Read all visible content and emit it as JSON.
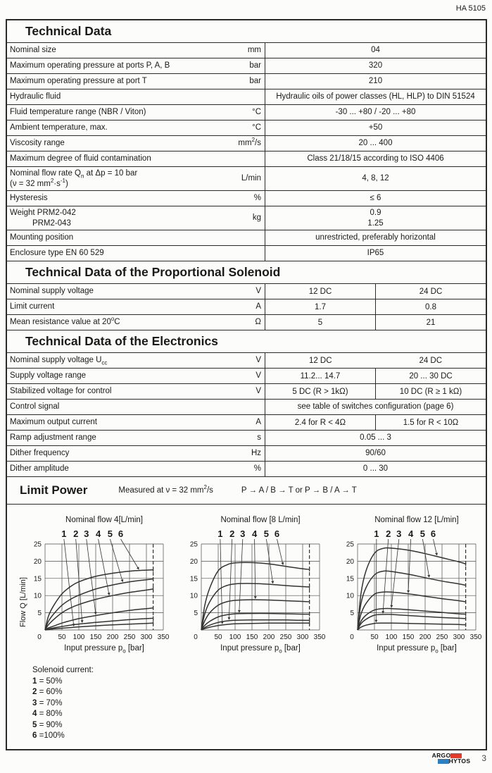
{
  "doc_ref": "HA 5105",
  "page_number": "3",
  "brand": {
    "line1": "ARGO",
    "line2": "HYTOS",
    "red": "#e6382d",
    "blue": "#2a7fc5"
  },
  "sections": {
    "technical_data": {
      "title": "Technical Data",
      "rows": [
        {
          "label": "Nominal size",
          "unit": "mm",
          "value": "04"
        },
        {
          "label": "Maximum operating pressure at ports  P, A, B",
          "unit": "bar",
          "value": "320"
        },
        {
          "label": "Maximum operating pressure at port  T",
          "unit": "bar",
          "value": "210"
        },
        {
          "label": "Hydraulic fluid",
          "unit": "",
          "value": "Hydraulic oils of power classes (HL, HLP) to DIN 51524"
        },
        {
          "label": "Fluid temperature range (NBR / Viton)",
          "unit": "°C",
          "value": "-30 ... +80 / -20 ... +80"
        },
        {
          "label": "Ambient temperature, max.",
          "unit": "°C",
          "value": "+50"
        },
        {
          "label": "Viscosity range",
          "unit": "mm<sup>2</sup>/s",
          "value": "20 ... 400"
        },
        {
          "label": "Maximum degree of fluid contamination",
          "unit": "",
          "value": "Class 21/18/15 according to ISO 4406"
        },
        {
          "label": "Nominal flow  rate Q<sub>n</sub> at Δp = 10 bar<br>(ν = 32 mm<sup>2</sup>·s<sup>-1</sup>)",
          "unit": "L/min",
          "value": "4, 8, 12"
        },
        {
          "label": "Hysteresis",
          "unit": "%",
          "value": "≤ 6"
        },
        {
          "label": "Weight  PRM2-042<br>&nbsp;&nbsp;&nbsp;&nbsp;&nbsp;&nbsp;&nbsp;&nbsp;&nbsp;&nbsp;PRM2-043",
          "unit": "kg",
          "value": "0.9<br>1.25"
        },
        {
          "label": "Mounting position",
          "unit": "",
          "value": "unrestricted, preferably horizontal"
        },
        {
          "label": "Enclosure type EN 60 529",
          "unit": "",
          "value": "IP65"
        }
      ]
    },
    "solenoid": {
      "title": "Technical Data of the Proportional Solenoid",
      "rows": [
        {
          "label": "Nominal supply voltage",
          "unit": "V",
          "v1": "12 DC",
          "v2": "24 DC"
        },
        {
          "label": "Limit current",
          "unit": "A",
          "v1": "1.7",
          "v2": "0.8"
        },
        {
          "label": "Mean resistance value at 20<sup>o</sup>C",
          "unit": "Ω",
          "v1": "5",
          "v2": "21"
        }
      ]
    },
    "electronics": {
      "title": "Technical Data of the Electronics",
      "rows": [
        {
          "label": "Nominal supply voltage U<sub>cc</sub>",
          "unit": "V",
          "v1": "12 DC",
          "v2": "24 DC"
        },
        {
          "label": "Supply voltage range",
          "unit": "V",
          "v1": "11.2... 14.7",
          "v2": "20 ... 30 DC"
        },
        {
          "label": "Stabilized voltage for control",
          "unit": "V",
          "v1": "5 DC (R &gt; 1kΩ)",
          "v2": "10 DC (R ≥ 1 kΩ)"
        },
        {
          "label": "Control signal",
          "unit": "",
          "value": "see table of switches configuration (page 6)"
        },
        {
          "label": "Maximum output current",
          "unit": "A",
          "v1": "2.4 for R &lt; 4Ω",
          "v2": "1.5 for R &lt; 10Ω"
        },
        {
          "label": "Ramp adjustment range",
          "unit": "s",
          "value": "0.05 ... 3"
        },
        {
          "label": "Dither frequency",
          "unit": "Hz",
          "value": "90/60"
        },
        {
          "label": "Dither amplitude",
          "unit": "%",
          "value": "0 ... 30"
        }
      ]
    },
    "limit_power": {
      "title": "Limit Power",
      "note": "Measured at ν = 32 mm<sup>2</sup>/s",
      "paths": "P → A / B → T or P → B / A → T",
      "legend_title": "Solenoid current:",
      "legend": [
        "<b>1</b> = 50%",
        "<b>2</b> = 60%",
        "<b>3</b> = 70%",
        "<b>4</b> = 80%",
        "<b>5</b> = 90%",
        "<b>6</b> =100%"
      ]
    }
  },
  "chart_data": [
    {
      "type": "line",
      "title": "Nominal flow 4[L/min]",
      "xlabel_html": "Input pressure p<sub>o</sub>  [bar]",
      "ylabel": "Flow Q  [L/min]",
      "xlim": [
        0,
        350
      ],
      "ylim": [
        0,
        25
      ],
      "xticks": [
        0,
        50,
        100,
        150,
        200,
        250,
        300,
        350
      ],
      "yticks": [
        0,
        5,
        10,
        15,
        20,
        25
      ],
      "grid": true,
      "dashed_line_x": 320,
      "x": [
        0,
        10,
        25,
        50,
        75,
        100,
        150,
        200,
        250,
        300,
        320
      ],
      "callout_x": [
        85,
        110,
        150,
        190,
        230,
        278
      ],
      "series": [
        {
          "name": "1",
          "percent": "50%",
          "values": [
            0,
            0.1,
            0.3,
            0.5,
            0.7,
            0.9,
            1.2,
            1.5,
            1.7,
            1.9,
            2.0
          ]
        },
        {
          "name": "2",
          "percent": "60%",
          "values": [
            0,
            0.3,
            0.6,
            1.0,
            1.4,
            1.7,
            2.2,
            2.6,
            3.0,
            3.3,
            3.4
          ]
        },
        {
          "name": "3",
          "percent": "70%",
          "values": [
            0,
            0.6,
            1.1,
            2.0,
            2.7,
            3.3,
            4.2,
            5.0,
            5.7,
            6.2,
            6.4
          ]
        },
        {
          "name": "4",
          "percent": "80%",
          "values": [
            0,
            1.5,
            3.0,
            5.0,
            6.4,
            7.4,
            8.9,
            10.0,
            10.9,
            11.6,
            11.9
          ]
        },
        {
          "name": "5",
          "percent": "90%",
          "values": [
            0,
            2.5,
            4.6,
            7.2,
            8.9,
            10.1,
            11.9,
            13.1,
            14.0,
            14.6,
            14.8
          ]
        },
        {
          "name": "6",
          "percent": "100%",
          "values": [
            0,
            4.0,
            7.0,
            10.5,
            12.6,
            14.0,
            15.6,
            16.5,
            17.1,
            17.4,
            17.5
          ]
        }
      ]
    },
    {
      "type": "line",
      "title": "Nominal flow [8 L/min]",
      "xlabel_html": "Input pressure p<sub>o</sub>  [bar]",
      "ylabel": "",
      "xlim": [
        0,
        350
      ],
      "ylim": [
        0,
        25
      ],
      "xticks": [
        0,
        50,
        100,
        150,
        200,
        250,
        300,
        350
      ],
      "yticks": [
        0,
        5,
        10,
        15,
        20,
        25
      ],
      "grid": true,
      "dashed_line_x": 320,
      "x": [
        0,
        10,
        25,
        50,
        75,
        100,
        150,
        200,
        250,
        300,
        320
      ],
      "callout_x": [
        62,
        82,
        112,
        160,
        212,
        242
      ],
      "series": [
        {
          "name": "1",
          "percent": "50%",
          "values": [
            0,
            0.4,
            0.8,
            1.3,
            1.6,
            1.8,
            1.9,
            2.0,
            2.0,
            2.0,
            2.0
          ]
        },
        {
          "name": "2",
          "percent": "60%",
          "values": [
            0,
            0.7,
            1.4,
            2.2,
            2.6,
            2.8,
            2.9,
            2.9,
            2.9,
            2.8,
            2.8
          ]
        },
        {
          "name": "3",
          "percent": "70%",
          "values": [
            0,
            1.3,
            2.5,
            3.8,
            4.4,
            4.7,
            4.8,
            4.8,
            4.7,
            4.6,
            4.6
          ]
        },
        {
          "name": "4",
          "percent": "80%",
          "values": [
            0,
            2.6,
            5.0,
            7.2,
            8.2,
            8.6,
            8.8,
            8.7,
            8.5,
            8.3,
            8.2
          ]
        },
        {
          "name": "5",
          "percent": "90%",
          "values": [
            0,
            4.6,
            8.2,
            11.6,
            12.9,
            13.4,
            13.5,
            13.3,
            12.9,
            12.6,
            12.5
          ]
        },
        {
          "name": "6",
          "percent": "100%",
          "values": [
            0,
            7.0,
            12.2,
            17.2,
            18.9,
            19.5,
            19.6,
            19.2,
            18.5,
            17.8,
            17.6
          ]
        }
      ]
    },
    {
      "type": "line",
      "title": "Nominal flow 12 [L/min]",
      "xlabel_html": "Input pressure p<sub>o</sub>  [bar]",
      "ylabel": "",
      "xlim": [
        0,
        350
      ],
      "ylim": [
        0,
        25
      ],
      "xticks": [
        0,
        50,
        100,
        150,
        200,
        250,
        300,
        350
      ],
      "yticks": [
        0,
        5,
        10,
        15,
        20,
        25
      ],
      "grid": true,
      "dashed_line_x": 320,
      "x": [
        0,
        10,
        25,
        50,
        75,
        100,
        150,
        200,
        250,
        300,
        320
      ],
      "callout_x": [
        55,
        75,
        100,
        150,
        212,
        235
      ],
      "series": [
        {
          "name": "1",
          "percent": "50%",
          "values": [
            0,
            0.8,
            1.4,
            1.9,
            2.0,
            2.0,
            1.9,
            1.8,
            1.7,
            1.6,
            1.5
          ]
        },
        {
          "name": "2",
          "percent": "60%",
          "values": [
            0,
            1.8,
            3.1,
            4.3,
            4.5,
            4.5,
            4.2,
            3.9,
            3.6,
            3.4,
            3.3
          ]
        },
        {
          "name": "3",
          "percent": "70%",
          "values": [
            0,
            2.5,
            4.3,
            5.8,
            6.2,
            6.2,
            5.9,
            5.5,
            5.1,
            4.7,
            4.6
          ]
        },
        {
          "name": "4",
          "percent": "80%",
          "values": [
            0,
            4.6,
            7.7,
            10.4,
            11.0,
            11.0,
            10.5,
            9.8,
            9.1,
            8.5,
            8.2
          ]
        },
        {
          "name": "5",
          "percent": "90%",
          "values": [
            0,
            7.6,
            12.3,
            16.0,
            17.1,
            17.0,
            16.2,
            15.2,
            14.2,
            13.4,
            13.0
          ]
        },
        {
          "name": "6",
          "percent": "100%",
          "values": [
            0,
            10.5,
            17.2,
            22.3,
            23.7,
            23.8,
            23.2,
            22.2,
            21.0,
            19.8,
            19.2
          ]
        }
      ]
    }
  ]
}
